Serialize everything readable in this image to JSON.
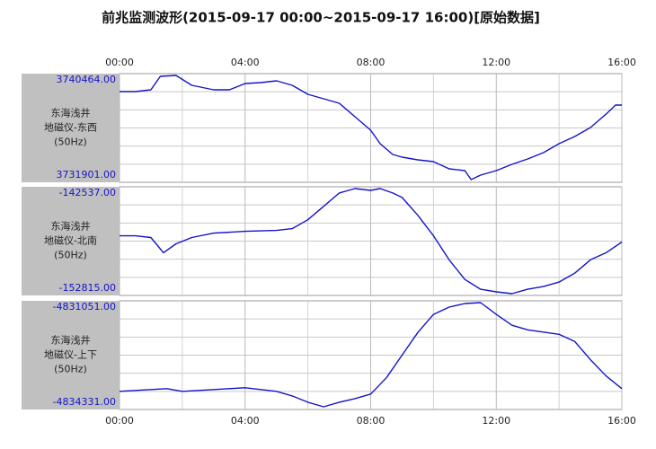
{
  "title": "前兆监测波形(2015-09-17 00:00~2015-09-17 16:00)[原始数据]",
  "chart_data": [
    {
      "type": "line",
      "station": "东海浅井",
      "instrument": "地磁仪-东西",
      "rate": "(50Hz)",
      "color": "#1414c8",
      "grid": true,
      "xlim": [
        0,
        16
      ],
      "xticks": [
        {
          "value": 0,
          "label": "00:00"
        },
        {
          "value": 4,
          "label": "04:00"
        },
        {
          "value": 8,
          "label": "08:00"
        },
        {
          "value": 12,
          "label": "12:00"
        },
        {
          "value": 16,
          "label": "16:00"
        }
      ],
      "ylim": [
        3731901,
        3740464
      ],
      "yticks": [
        {
          "value": 3731901,
          "label": "3731901.00"
        },
        {
          "value": 3740464,
          "label": "3740464.00"
        }
      ],
      "x": [
        0,
        0.5,
        1,
        1.3,
        1.8,
        2.3,
        3,
        3.5,
        4,
        4.5,
        5,
        5.5,
        6,
        6.5,
        7,
        7.5,
        8,
        8.3,
        8.7,
        9,
        9.5,
        10,
        10.5,
        11,
        11.2,
        11.5,
        12,
        12.5,
        13,
        13.5,
        14,
        14.5,
        15,
        15.5,
        15.8,
        16
      ],
      "values": [
        3739049,
        3739049,
        3739190,
        3740252,
        3740322,
        3739544,
        3739190,
        3739190,
        3739686,
        3739756,
        3739898,
        3739544,
        3738836,
        3738482,
        3738128,
        3737067,
        3736005,
        3734944,
        3734095,
        3733882,
        3733670,
        3733529,
        3732962,
        3732821,
        3732113,
        3732467,
        3732821,
        3733317,
        3733741,
        3734237,
        3734944,
        3735510,
        3736218,
        3737279,
        3737987,
        3737987
      ]
    },
    {
      "type": "line",
      "station": "东海浅井",
      "instrument": "地磁仪-北南",
      "rate": "(50Hz)",
      "color": "#1414c8",
      "grid": true,
      "xlim": [
        0,
        16
      ],
      "xticks": [
        {
          "value": 0,
          "label": "00:00"
        },
        {
          "value": 4,
          "label": "04:00"
        },
        {
          "value": 8,
          "label": "08:00"
        },
        {
          "value": 12,
          "label": "12:00"
        },
        {
          "value": 16,
          "label": "16:00"
        }
      ],
      "ylim": [
        -152815,
        -142537
      ],
      "yticks": [
        {
          "value": -152815,
          "label": "-152815.00"
        },
        {
          "value": -142537,
          "label": "-142537.00"
        }
      ],
      "x": [
        0,
        0.5,
        1,
        1.4,
        1.8,
        2.3,
        3,
        4,
        5,
        5.5,
        6,
        6.5,
        7,
        7.5,
        8,
        8.3,
        8.7,
        9,
        9.5,
        10,
        10.5,
        11,
        11.5,
        12,
        12.5,
        13,
        13.5,
        14,
        14.5,
        15,
        15.5,
        16
      ],
      "values": [
        -147171,
        -147171,
        -147339,
        -148772,
        -147929,
        -147339,
        -146918,
        -146750,
        -146665,
        -146497,
        -145654,
        -144391,
        -143127,
        -142706,
        -142874,
        -142706,
        -143127,
        -143548,
        -145233,
        -147171,
        -149446,
        -151299,
        -152226,
        -152478,
        -152647,
        -152226,
        -151973,
        -151552,
        -150709,
        -149446,
        -148772,
        -147761
      ]
    },
    {
      "type": "line",
      "station": "东海浅井",
      "instrument": "地磁仪-上下",
      "rate": "(50Hz)",
      "color": "#1414c8",
      "grid": true,
      "xlim": [
        0,
        16
      ],
      "xticks": [
        {
          "value": 0,
          "label": "00:00"
        },
        {
          "value": 4,
          "label": "04:00"
        },
        {
          "value": 8,
          "label": "08:00"
        },
        {
          "value": 12,
          "label": "12:00"
        },
        {
          "value": 16,
          "label": "16:00"
        }
      ],
      "ylim": [
        -4834331,
        -4831051
      ],
      "yticks": [
        {
          "value": -4834331,
          "label": "-4834331.00"
        },
        {
          "value": -4831051,
          "label": "-4831051.00"
        }
      ],
      "x": [
        0,
        1,
        1.5,
        2,
        3,
        4,
        5,
        5.5,
        6,
        6.5,
        7,
        7.5,
        8,
        8.5,
        9,
        9.5,
        10,
        10.5,
        11,
        11.5,
        12,
        12.5,
        13,
        14,
        14.5,
        15,
        15.5,
        16
      ],
      "values": [
        -4833784,
        -4833729,
        -4833702,
        -4833784,
        -4833729,
        -4833675,
        -4833784,
        -4833921,
        -4834112,
        -4834249,
        -4834112,
        -4834003,
        -4833866,
        -4833374,
        -4832691,
        -4832008,
        -4831461,
        -4831242,
        -4831133,
        -4831106,
        -4831461,
        -4831789,
        -4831926,
        -4832062,
        -4832280,
        -4832828,
        -4833320,
        -4833702
      ]
    }
  ]
}
